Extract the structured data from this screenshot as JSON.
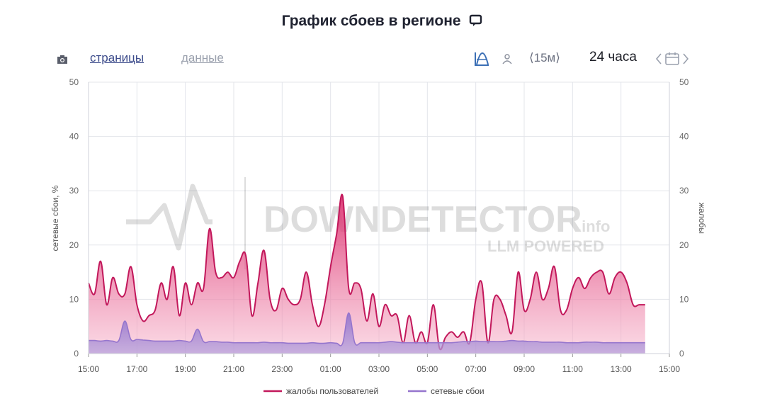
{
  "header": {
    "title": "График сбоев в регионе"
  },
  "toolbar": {
    "tab_pages": "страницы",
    "tab_data": "данные",
    "step_label": "⟨15м⟩",
    "range_label": "24 часа",
    "icons": [
      "camera-icon",
      "chart-shape-icon",
      "user-icon",
      "calendar-icon"
    ]
  },
  "watermark": {
    "brand": "DOWNDETECTOR",
    "suffix": ".info",
    "tagline": "LLM POWERED"
  },
  "colors": {
    "complaints": "#c2185b",
    "outages": "#9575cd",
    "accent": "#3b4a8a"
  },
  "chart_data": {
    "type": "area",
    "ylabel": "сетевые сбои, %",
    "y2label": "жалобы",
    "ylim": [
      0,
      50
    ],
    "y2lim": [
      0,
      50
    ],
    "yticks": [
      0,
      10,
      20,
      30,
      40,
      50
    ],
    "xticks": [
      "15:00",
      "17:00",
      "19:00",
      "21:00",
      "23:00",
      "01:00",
      "03:00",
      "05:00",
      "07:00",
      "09:00",
      "11:00",
      "13:00",
      "15:00"
    ],
    "x_unit": "hours since 15:00",
    "grid": true,
    "legend": "bottom",
    "series": [
      {
        "name": "жалобы пользователей",
        "x": [
          0,
          0.25,
          0.5,
          0.75,
          1.0,
          1.25,
          1.5,
          1.75,
          2.0,
          2.25,
          2.5,
          2.75,
          3.0,
          3.25,
          3.5,
          3.75,
          4.0,
          4.25,
          4.5,
          4.75,
          5.0,
          5.25,
          5.5,
          5.75,
          6.0,
          6.25,
          6.5,
          6.75,
          7.0,
          7.25,
          7.5,
          7.75,
          8.0,
          8.25,
          8.5,
          8.75,
          9.0,
          9.25,
          9.5,
          9.75,
          10.0,
          10.25,
          10.5,
          10.75,
          11.0,
          11.25,
          11.5,
          11.75,
          12.0,
          12.25,
          12.5,
          12.75,
          13.0,
          13.25,
          13.5,
          13.75,
          14.0,
          14.25,
          14.5,
          14.75,
          15.0,
          15.25,
          15.5,
          15.75,
          16.0,
          16.25,
          16.5,
          16.75,
          17.0,
          17.25,
          17.5,
          17.75,
          18.0,
          18.25,
          18.5,
          18.75,
          19.0,
          19.25,
          19.5,
          19.75,
          20.0,
          20.25,
          20.5,
          20.75,
          21.0,
          21.25,
          21.5,
          21.75,
          22.0,
          22.25,
          22.5,
          22.75,
          23.0
        ],
        "values": [
          13,
          11,
          17,
          9,
          14,
          11,
          11,
          16,
          9,
          6,
          7,
          8,
          13,
          10,
          16,
          7,
          13,
          9,
          13,
          12,
          23,
          15,
          14,
          15,
          14,
          17,
          18,
          7,
          13,
          19,
          10,
          8,
          12,
          10,
          9,
          10,
          15,
          9,
          5,
          9,
          16,
          22,
          29,
          12,
          13,
          12,
          6,
          11,
          5,
          9,
          7,
          7,
          2,
          7,
          2,
          4,
          2,
          9,
          1,
          3,
          4,
          3,
          4,
          2,
          10,
          13,
          2,
          10,
          10,
          7,
          4,
          15,
          8,
          10,
          15,
          10,
          12,
          16,
          8,
          8,
          12,
          14,
          12,
          14,
          15,
          15,
          11,
          14,
          15,
          13,
          9,
          9,
          9
        ],
        "color": "#c2185b"
      },
      {
        "name": "сетевые сбои",
        "x": [
          0,
          0.25,
          0.5,
          0.75,
          1.0,
          1.25,
          1.5,
          1.75,
          2.0,
          2.25,
          2.5,
          2.75,
          3.0,
          3.25,
          3.5,
          3.75,
          4.0,
          4.25,
          4.5,
          4.75,
          5.0,
          5.25,
          5.5,
          5.75,
          6.0,
          6.25,
          6.5,
          6.75,
          7.0,
          7.25,
          7.5,
          7.75,
          8.0,
          8.25,
          8.5,
          8.75,
          9.0,
          9.25,
          9.5,
          9.75,
          10.0,
          10.25,
          10.5,
          10.75,
          11.0,
          11.25,
          11.5,
          11.75,
          12.0,
          12.25,
          12.5,
          12.75,
          13.0,
          13.25,
          13.5,
          13.75,
          14.0,
          14.25,
          14.5,
          14.75,
          15.0,
          15.25,
          15.5,
          15.75,
          16.0,
          16.25,
          16.5,
          16.75,
          17.0,
          17.25,
          17.5,
          17.75,
          18.0,
          18.25,
          18.5,
          18.75,
          19.0,
          19.25,
          19.5,
          19.75,
          20.0,
          20.25,
          20.5,
          20.75,
          21.0,
          21.25,
          21.5,
          21.75,
          22.0,
          22.25,
          22.5,
          22.75,
          23.0
        ],
        "values": [
          2.4,
          2.4,
          2.3,
          2.4,
          2.3,
          2.4,
          6.0,
          2.6,
          2.6,
          2.5,
          2.4,
          2.3,
          2.3,
          2.3,
          2.3,
          2.4,
          2.3,
          2.3,
          4.5,
          2.2,
          2.2,
          2.2,
          2.1,
          2.1,
          2.0,
          2.0,
          2.0,
          2.0,
          2.0,
          2.1,
          2.0,
          2.0,
          2.0,
          1.9,
          1.9,
          1.9,
          1.9,
          2.0,
          1.9,
          1.9,
          2.0,
          1.9,
          1.9,
          7.5,
          2.0,
          2.0,
          2.0,
          2.0,
          2.0,
          2.1,
          2.2,
          2.1,
          2.0,
          2.0,
          2.0,
          2.0,
          2.0,
          2.0,
          2.0,
          2.0,
          2.0,
          2.1,
          2.2,
          2.2,
          2.3,
          2.2,
          2.2,
          2.2,
          2.2,
          2.3,
          2.4,
          2.3,
          2.3,
          2.2,
          2.2,
          2.1,
          2.1,
          2.1,
          2.1,
          2.0,
          2.0,
          2.0,
          2.1,
          2.1,
          2.1,
          2.0,
          2.0,
          2.0,
          2.0,
          2.0,
          2.0,
          2.0,
          2.0
        ],
        "color": "#9575cd"
      }
    ]
  }
}
